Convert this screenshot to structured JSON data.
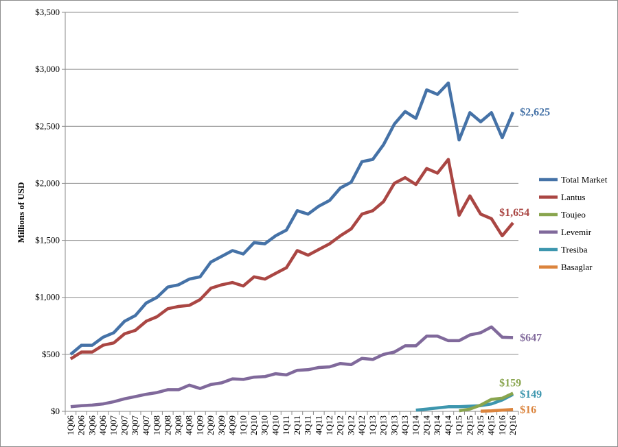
{
  "chart_data": {
    "type": "line",
    "title": "",
    "xlabel": "",
    "ylabel": "Millions of USD",
    "ylim": [
      0,
      3500
    ],
    "yticks": [
      "$0",
      "$500",
      "$1,000",
      "$1,500",
      "$2,000",
      "$2,500",
      "$3,000",
      "$3,500"
    ],
    "ytick_values": [
      0,
      500,
      1000,
      1500,
      2000,
      2500,
      3000,
      3500
    ],
    "grid": true,
    "legend_position": "right",
    "categories": [
      "1Q06",
      "2Q06",
      "3Q06",
      "4Q06",
      "1Q07",
      "2Q07",
      "3Q07",
      "4Q07",
      "1Q08",
      "2Q08",
      "3Q08",
      "4Q08",
      "1Q09",
      "2Q09",
      "3Q09",
      "4Q09",
      "1Q10",
      "2Q10",
      "3Q10",
      "4Q10",
      "1Q11",
      "2Q11",
      "3Q11",
      "4Q11",
      "1Q12",
      "2Q12",
      "3Q12",
      "4Q12",
      "1Q13",
      "2Q13",
      "3Q13",
      "4Q13",
      "1Q14",
      "2Q14",
      "3Q14",
      "4Q14",
      "1Q15",
      "2Q15",
      "3Q15",
      "4Q15",
      "1Q16",
      "2Q16"
    ],
    "series": [
      {
        "name": "Total Market",
        "color": "#4572a7",
        "end_label": "$2,625",
        "values": [
          500,
          580,
          580,
          650,
          690,
          790,
          840,
          950,
          1000,
          1090,
          1110,
          1160,
          1180,
          1310,
          1360,
          1410,
          1380,
          1480,
          1470,
          1540,
          1590,
          1760,
          1730,
          1800,
          1850,
          1960,
          2010,
          2190,
          2210,
          2340,
          2520,
          2630,
          2570,
          2820,
          2780,
          2880,
          2380,
          2620,
          2540,
          2620,
          2400,
          2625
        ]
      },
      {
        "name": "Lantus",
        "color": "#aa4643",
        "end_label": "$1,654",
        "values": [
          460,
          520,
          520,
          580,
          600,
          680,
          710,
          790,
          830,
          900,
          920,
          930,
          980,
          1080,
          1110,
          1130,
          1100,
          1180,
          1160,
          1210,
          1260,
          1410,
          1370,
          1420,
          1470,
          1540,
          1600,
          1730,
          1760,
          1840,
          2000,
          2050,
          1990,
          2130,
          2090,
          2210,
          1720,
          1890,
          1730,
          1690,
          1540,
          1654
        ]
      },
      {
        "name": "Toujeo",
        "color": "#89a54e",
        "end_label": "$159",
        "values": [
          null,
          null,
          null,
          null,
          null,
          null,
          null,
          null,
          null,
          null,
          null,
          null,
          null,
          null,
          null,
          null,
          null,
          null,
          null,
          null,
          null,
          null,
          null,
          null,
          null,
          null,
          null,
          null,
          null,
          null,
          null,
          null,
          null,
          null,
          null,
          null,
          5,
          20,
          55,
          105,
          115,
          159
        ]
      },
      {
        "name": "Levemir",
        "color": "#80699b",
        "end_label": "$647",
        "values": [
          40,
          50,
          55,
          65,
          85,
          110,
          130,
          150,
          165,
          190,
          190,
          230,
          200,
          235,
          250,
          285,
          280,
          300,
          305,
          330,
          320,
          360,
          365,
          385,
          390,
          420,
          410,
          465,
          455,
          500,
          520,
          575,
          575,
          660,
          660,
          620,
          620,
          670,
          690,
          740,
          650,
          647
        ]
      },
      {
        "name": "Tresiba",
        "color": "#3d96ae",
        "end_label": "$149",
        "values": [
          null,
          null,
          null,
          null,
          null,
          null,
          null,
          null,
          null,
          null,
          null,
          null,
          null,
          null,
          null,
          null,
          null,
          null,
          null,
          null,
          null,
          null,
          null,
          null,
          null,
          null,
          null,
          null,
          null,
          null,
          null,
          null,
          10,
          20,
          30,
          40,
          40,
          45,
          50,
          65,
          100,
          149
        ]
      },
      {
        "name": "Basaglar",
        "color": "#db843d",
        "end_label": "$16",
        "values": [
          null,
          null,
          null,
          null,
          null,
          null,
          null,
          null,
          null,
          null,
          null,
          null,
          null,
          null,
          null,
          null,
          null,
          null,
          null,
          null,
          null,
          null,
          null,
          null,
          null,
          null,
          null,
          null,
          null,
          null,
          null,
          null,
          null,
          null,
          null,
          null,
          null,
          null,
          2,
          5,
          10,
          16
        ]
      }
    ]
  }
}
